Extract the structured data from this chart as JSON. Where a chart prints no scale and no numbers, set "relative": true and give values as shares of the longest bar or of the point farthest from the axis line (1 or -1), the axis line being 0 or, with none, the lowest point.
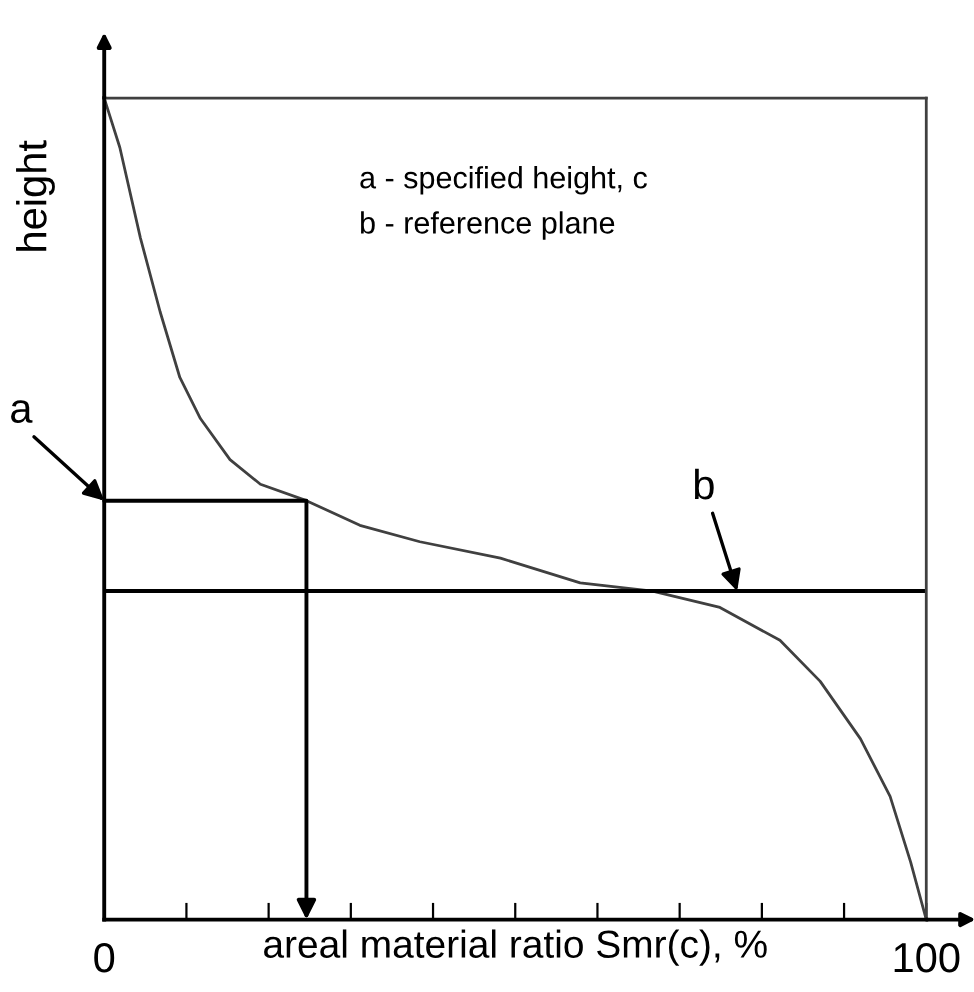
{
  "chart_data": {
    "type": "line",
    "relative": true,
    "xlabel": "areal material ratio Smr(c), %",
    "ylabel": "height",
    "xlim": [
      0,
      100
    ],
    "xticks": [
      0,
      {
        "value": 10,
        "label": null
      },
      {
        "value": 20,
        "label": null
      },
      {
        "value": 30,
        "label": null
      },
      {
        "value": 40,
        "label": null
      },
      {
        "value": 50,
        "label": null
      },
      {
        "value": 60,
        "label": null
      },
      {
        "value": 70,
        "label": null
      },
      {
        "value": 80,
        "label": null
      },
      {
        "value": 90,
        "label": null
      },
      100
    ],
    "series": [
      {
        "color": "#404040",
        "x": [
          0,
          1.9,
          4.4,
          6.8,
          9.2,
          11.7,
          15.3,
          19.0,
          24.6,
          31.1,
          38.4,
          48.2,
          57.9,
          66.7,
          74.9,
          82.2,
          87.1,
          92.0,
          95.6,
          98.1,
          100
        ],
        "values": [
          1.0,
          0.94,
          0.83,
          0.74,
          0.66,
          0.61,
          0.56,
          0.53,
          0.51,
          0.48,
          0.46,
          0.44,
          0.41,
          0.4,
          0.38,
          0.34,
          0.29,
          0.22,
          0.15,
          0.07,
          0.0
        ]
      }
    ],
    "ref_lines": [
      {
        "axis": "y",
        "value": 0.51,
        "label": "a",
        "color": "#000000"
      },
      {
        "axis": "y",
        "value": 0.4,
        "label": "b",
        "color": "#000000"
      }
    ],
    "annotations": [
      "a - specified height, c",
      "b - reference plane"
    ],
    "grid": false,
    "legend": false,
    "marker": "none",
    "line_style": "solid"
  }
}
